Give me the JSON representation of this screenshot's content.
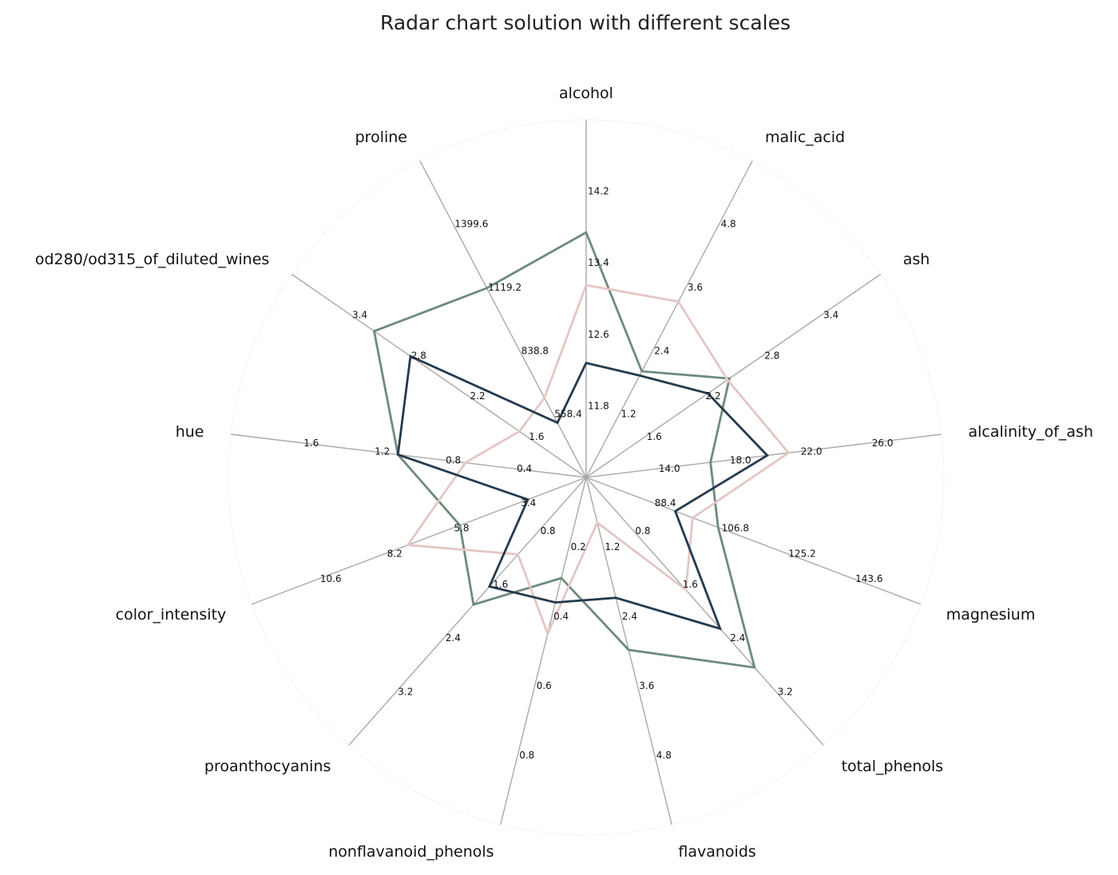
{
  "chart_data": {
    "type": "radar",
    "title": "Radar chart solution with different scales",
    "axes": [
      {
        "name": "alcohol",
        "ticks": [
          "11.8",
          "12.6",
          "13.4",
          "14.2"
        ],
        "range": [
          11.0,
          15.0
        ]
      },
      {
        "name": "malic_acid",
        "ticks": [
          "1.2",
          "2.4",
          "3.6",
          "4.8"
        ],
        "range": [
          0.0,
          6.0
        ]
      },
      {
        "name": "ash",
        "ticks": [
          "1.6",
          "2.2",
          "2.8",
          "3.4"
        ],
        "range": [
          1.0,
          4.0
        ]
      },
      {
        "name": "alcalinity_of_ash",
        "ticks": [
          "14.0",
          "18.0",
          "22.0",
          "26.0"
        ],
        "range": [
          10.0,
          30.0
        ]
      },
      {
        "name": "magnesium",
        "ticks": [
          "88.4",
          "106.8",
          "125.2",
          "143.6"
        ],
        "range": [
          70.0,
          162.0
        ]
      },
      {
        "name": "total_phenols",
        "ticks": [
          "0.8",
          "1.6",
          "2.4",
          "3.2"
        ],
        "range": [
          0.0,
          4.0
        ]
      },
      {
        "name": "flavanoids",
        "ticks": [
          "1.2",
          "2.4",
          "3.6",
          "4.8"
        ],
        "range": [
          0.0,
          6.0
        ]
      },
      {
        "name": "nonflavanoid_phenols",
        "ticks": [
          "0.2",
          "0.4",
          "0.6",
          "0.8"
        ],
        "range": [
          0.0,
          1.0
        ]
      },
      {
        "name": "proanthocyanins",
        "ticks": [
          "0.8",
          "1.6",
          "2.4",
          "3.2"
        ],
        "range": [
          0.0,
          4.0
        ]
      },
      {
        "name": "color_intensity",
        "ticks": [
          "3.4",
          "5.8",
          "8.2",
          "10.6"
        ],
        "range": [
          1.0,
          13.0
        ]
      },
      {
        "name": "hue",
        "ticks": [
          "0.4",
          "0.8",
          "1.2",
          "1.6"
        ],
        "range": [
          0.0,
          2.0
        ]
      },
      {
        "name": "od280/od315_of_diluted_wines",
        "ticks": [
          "1.6",
          "2.2",
          "2.8",
          "3.4"
        ],
        "range": [
          1.0,
          4.0
        ]
      },
      {
        "name": "proline",
        "ticks": [
          "558.4",
          "838.8",
          "1119.2",
          "1399.6"
        ],
        "range": [
          278.0,
          1680.0
        ]
      }
    ],
    "series": [
      {
        "color": "#6e8a7d",
        "values": [
          13.74,
          2.01,
          2.46,
          17.0,
          106.3,
          2.84,
          2.98,
          0.29,
          1.9,
          5.53,
          1.06,
          3.16,
          1116.0
        ]
      },
      {
        "color": "#e3c7c4",
        "values": [
          13.15,
          3.33,
          2.44,
          21.4,
          99.3,
          1.68,
          0.78,
          0.45,
          1.15,
          7.4,
          0.68,
          1.68,
          630.0
        ]
      },
      {
        "color": "#253a4e",
        "values": [
          12.28,
          1.93,
          2.24,
          20.2,
          94.5,
          2.26,
          2.08,
          0.36,
          1.63,
          3.09,
          1.06,
          2.79,
          520.0
        ]
      }
    ],
    "grid": true,
    "legend": "none"
  }
}
